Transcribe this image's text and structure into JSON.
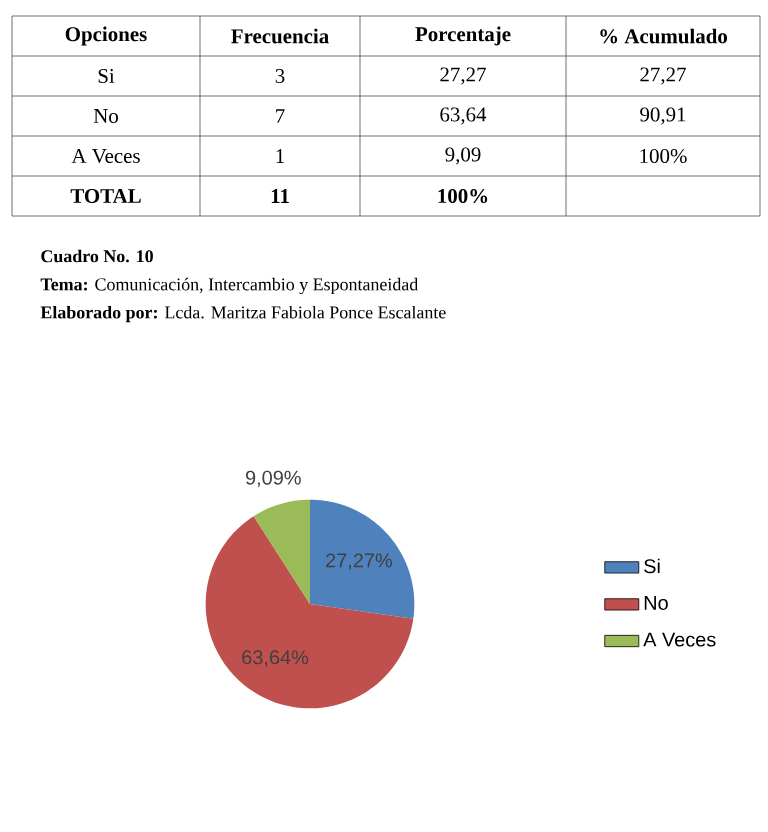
{
  "chart_data": {
    "type": "pie",
    "categories": [
      "Si",
      "No",
      "A Veces"
    ],
    "values": [
      27.27,
      63.64,
      9.09
    ],
    "colors": [
      "#4f81bd",
      "#c0504d",
      "#9bbb59"
    ],
    "value_labels": [
      "27,27%",
      "63,64%",
      "9,09%"
    ],
    "legend": "right",
    "annotations": [
      "Opciones",
      "Frecuencia",
      "Porcentaje",
      "% Acumulado",
      "Si",
      "3",
      "27,27",
      "27,27",
      "No",
      "7",
      "63,64",
      "90,91",
      "A Veces",
      "1",
      "9,09",
      "100%",
      "TOTAL",
      "11",
      "100%",
      "Cuadro No. 10",
      "**Tema:** Comunicación, Intercambio y Espontaneidad",
      "**Elaborado por:** Lcda. Maritza Fabiola Ponce Escalante"
    ]
  }
}
